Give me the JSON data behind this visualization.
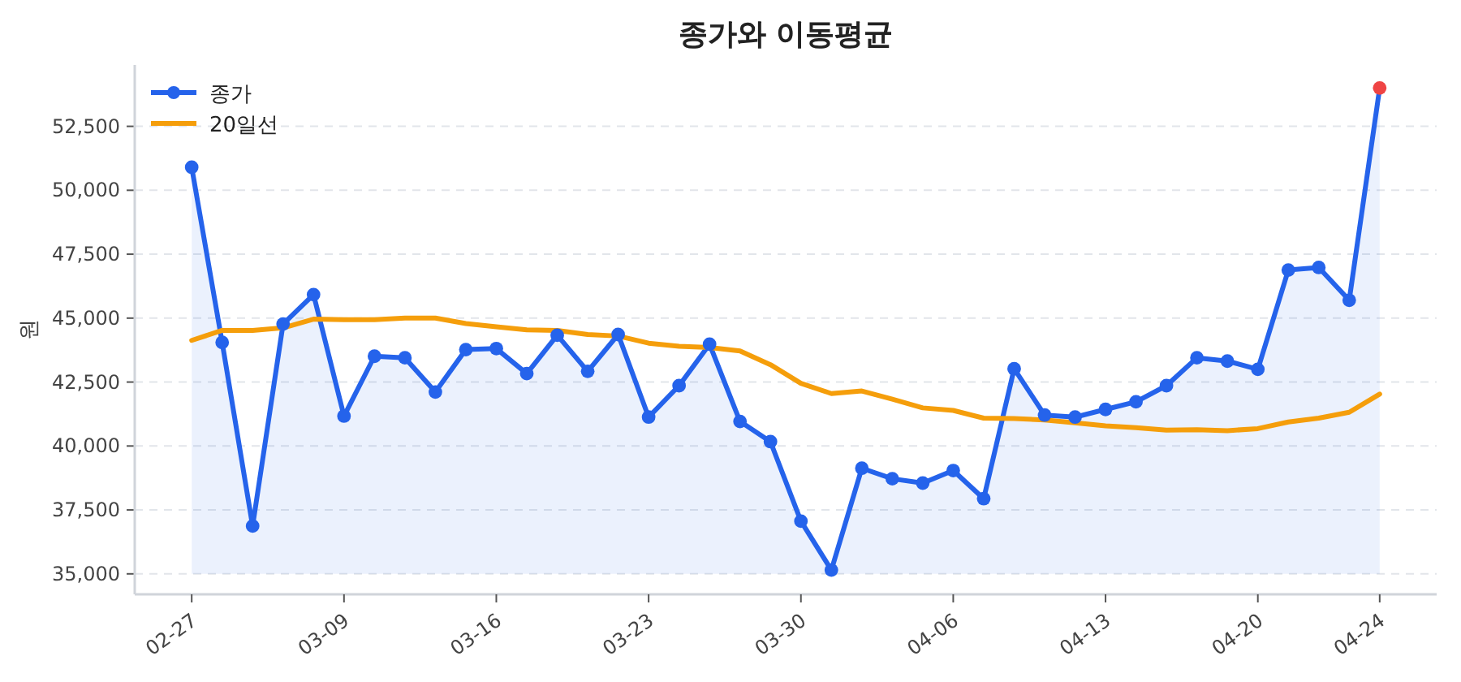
{
  "chart_data": {
    "type": "line",
    "title": "종가와 이동평균",
    "ylabel": "원",
    "categories": [
      "02-27",
      null,
      null,
      null,
      null,
      "03-09",
      null,
      null,
      null,
      null,
      "03-16",
      null,
      null,
      null,
      null,
      "03-23",
      null,
      null,
      null,
      null,
      "03-30",
      null,
      null,
      null,
      null,
      "04-06",
      null,
      null,
      null,
      null,
      "04-13",
      null,
      null,
      null,
      null,
      "04-20",
      null,
      null,
      null,
      "04-24"
    ],
    "ylim": [
      34200,
      54900
    ],
    "yticks": [
      {
        "value": 35000,
        "label": "35,000"
      },
      {
        "value": 37500,
        "label": "37,500"
      },
      {
        "value": 40000,
        "label": "40,000"
      },
      {
        "value": 42500,
        "label": "42,500"
      },
      {
        "value": 45000,
        "label": "45,000"
      },
      {
        "value": 47500,
        "label": "47,500"
      },
      {
        "value": 50000,
        "label": "50,000"
      },
      {
        "value": 52500,
        "label": "52,500"
      }
    ],
    "grid": "y",
    "legend": "top left",
    "series": [
      {
        "name": "종가",
        "type": "area",
        "marker": "circle",
        "color": "#2563eb",
        "colors": [
          "#2563eb",
          "#2563eb",
          "#2563eb",
          "#2563eb",
          "#2563eb",
          "#2563eb",
          "#2563eb",
          "#2563eb",
          "#2563eb",
          "#2563eb",
          "#2563eb",
          "#2563eb",
          "#2563eb",
          "#2563eb",
          "#2563eb",
          "#2563eb",
          "#2563eb",
          "#2563eb",
          "#2563eb",
          "#2563eb",
          "#2563eb",
          "#2563eb",
          "#2563eb",
          "#2563eb",
          "#2563eb",
          "#2563eb",
          "#2563eb",
          "#2563eb",
          "#2563eb",
          "#2563eb",
          "#2563eb",
          "#2563eb",
          "#2563eb",
          "#2563eb",
          "#2563eb",
          "#2563eb",
          "#2563eb",
          "#2563eb",
          "#2563eb",
          "#ef4444"
        ],
        "values": [
          50900,
          44050,
          36870,
          44770,
          45920,
          41170,
          43510,
          43450,
          42110,
          43770,
          43810,
          42830,
          44330,
          42920,
          44360,
          41130,
          42360,
          43980,
          40960,
          40170,
          37060,
          35150,
          39130,
          38720,
          38550,
          39040,
          37940,
          43020,
          41210,
          41130,
          41430,
          41730,
          42360,
          43450,
          43320,
          43000,
          46880,
          46980,
          45700,
          54000
        ]
      },
      {
        "name": "20일선",
        "marker": "none",
        "color": "#f59e0b",
        "values": [
          44130,
          44520,
          44520,
          44620,
          44960,
          44940,
          44940,
          45000,
          45000,
          44790,
          44660,
          44540,
          44520,
          44360,
          44300,
          44020,
          43900,
          43850,
          43720,
          43180,
          42450,
          42050,
          42150,
          41830,
          41490,
          41390,
          41090,
          41070,
          41020,
          40910,
          40790,
          40720,
          40620,
          40640,
          40600,
          40680,
          40940,
          41090,
          41320,
          42030
        ]
      }
    ]
  }
}
